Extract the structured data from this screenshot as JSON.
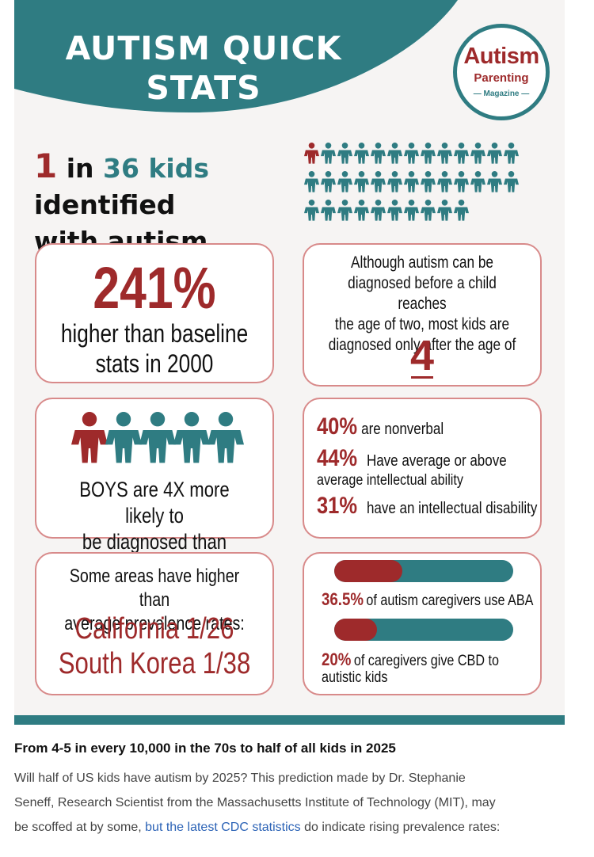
{
  "header": {
    "title_line1": "AUTISM QUICK",
    "title_line2": "STATS"
  },
  "logo": {
    "main": "Autism",
    "sub": "Parenting",
    "magazine": "Magazine"
  },
  "headline": {
    "num1": "1",
    "in": "in",
    "num2": "36",
    "kids": "kids",
    "identified": "identified",
    "line2": "with autism"
  },
  "people_grid": {
    "total_figures": 36,
    "highlighted": 1
  },
  "card_baseline": {
    "percent": "241%",
    "line1": "higher than baseline",
    "line2": "stats in 2000"
  },
  "card_diagnosis": {
    "line1": "Although autism can be",
    "line2": "diagnosed before a child reaches",
    "line3": "the age of two, most kids are",
    "line4": "diagnosed only after the age of",
    "age": "4"
  },
  "card_boys": {
    "line1": "BOYS are 4X more likely to",
    "line2": "be diagnosed than GIRLS",
    "figures_total": 5,
    "figures_highlighted": 1
  },
  "card_traits": {
    "nonverbal_pct": "40%",
    "nonverbal_text": "are nonverbal",
    "intellect_pct": "44%",
    "intellect_text1": "Have average or above",
    "intellect_text2": "average intellectual ability",
    "disability_pct": "31%",
    "disability_text": "have an intellectual disability"
  },
  "card_regions": {
    "line1": "Some areas have higher than",
    "line2": "average prevalence rates:",
    "california": "California 1/26",
    "korea": "South Korea 1/38"
  },
  "card_caregivers": {
    "aba_pct": "36.5%",
    "aba_text": "of autism caregivers use ABA",
    "aba_fill": 0.38,
    "cbd_pct": "20%",
    "cbd_text1": "of caregivers give CBD to",
    "cbd_text2": "autistic kids",
    "cbd_fill": 0.24
  },
  "article": {
    "title": "From 4-5 in every 10,000 in the 70s to half of all kids in 2025",
    "body1": "Will half of US kids have autism by 2025? This prediction made by Dr. Stephanie",
    "body2": "Seneff, Research Scientist from the Massachusetts Institute of Technology (MIT), may",
    "body3_pre": "be scoffed at by some, ",
    "body3_link": "but the latest CDC statistics",
    "body3_post": " do indicate rising prevalence rates:"
  },
  "colors": {
    "teal": "#2f7c82",
    "red": "#9e2a2b",
    "card_border": "#d88a8a",
    "link": "#2c63b6"
  }
}
